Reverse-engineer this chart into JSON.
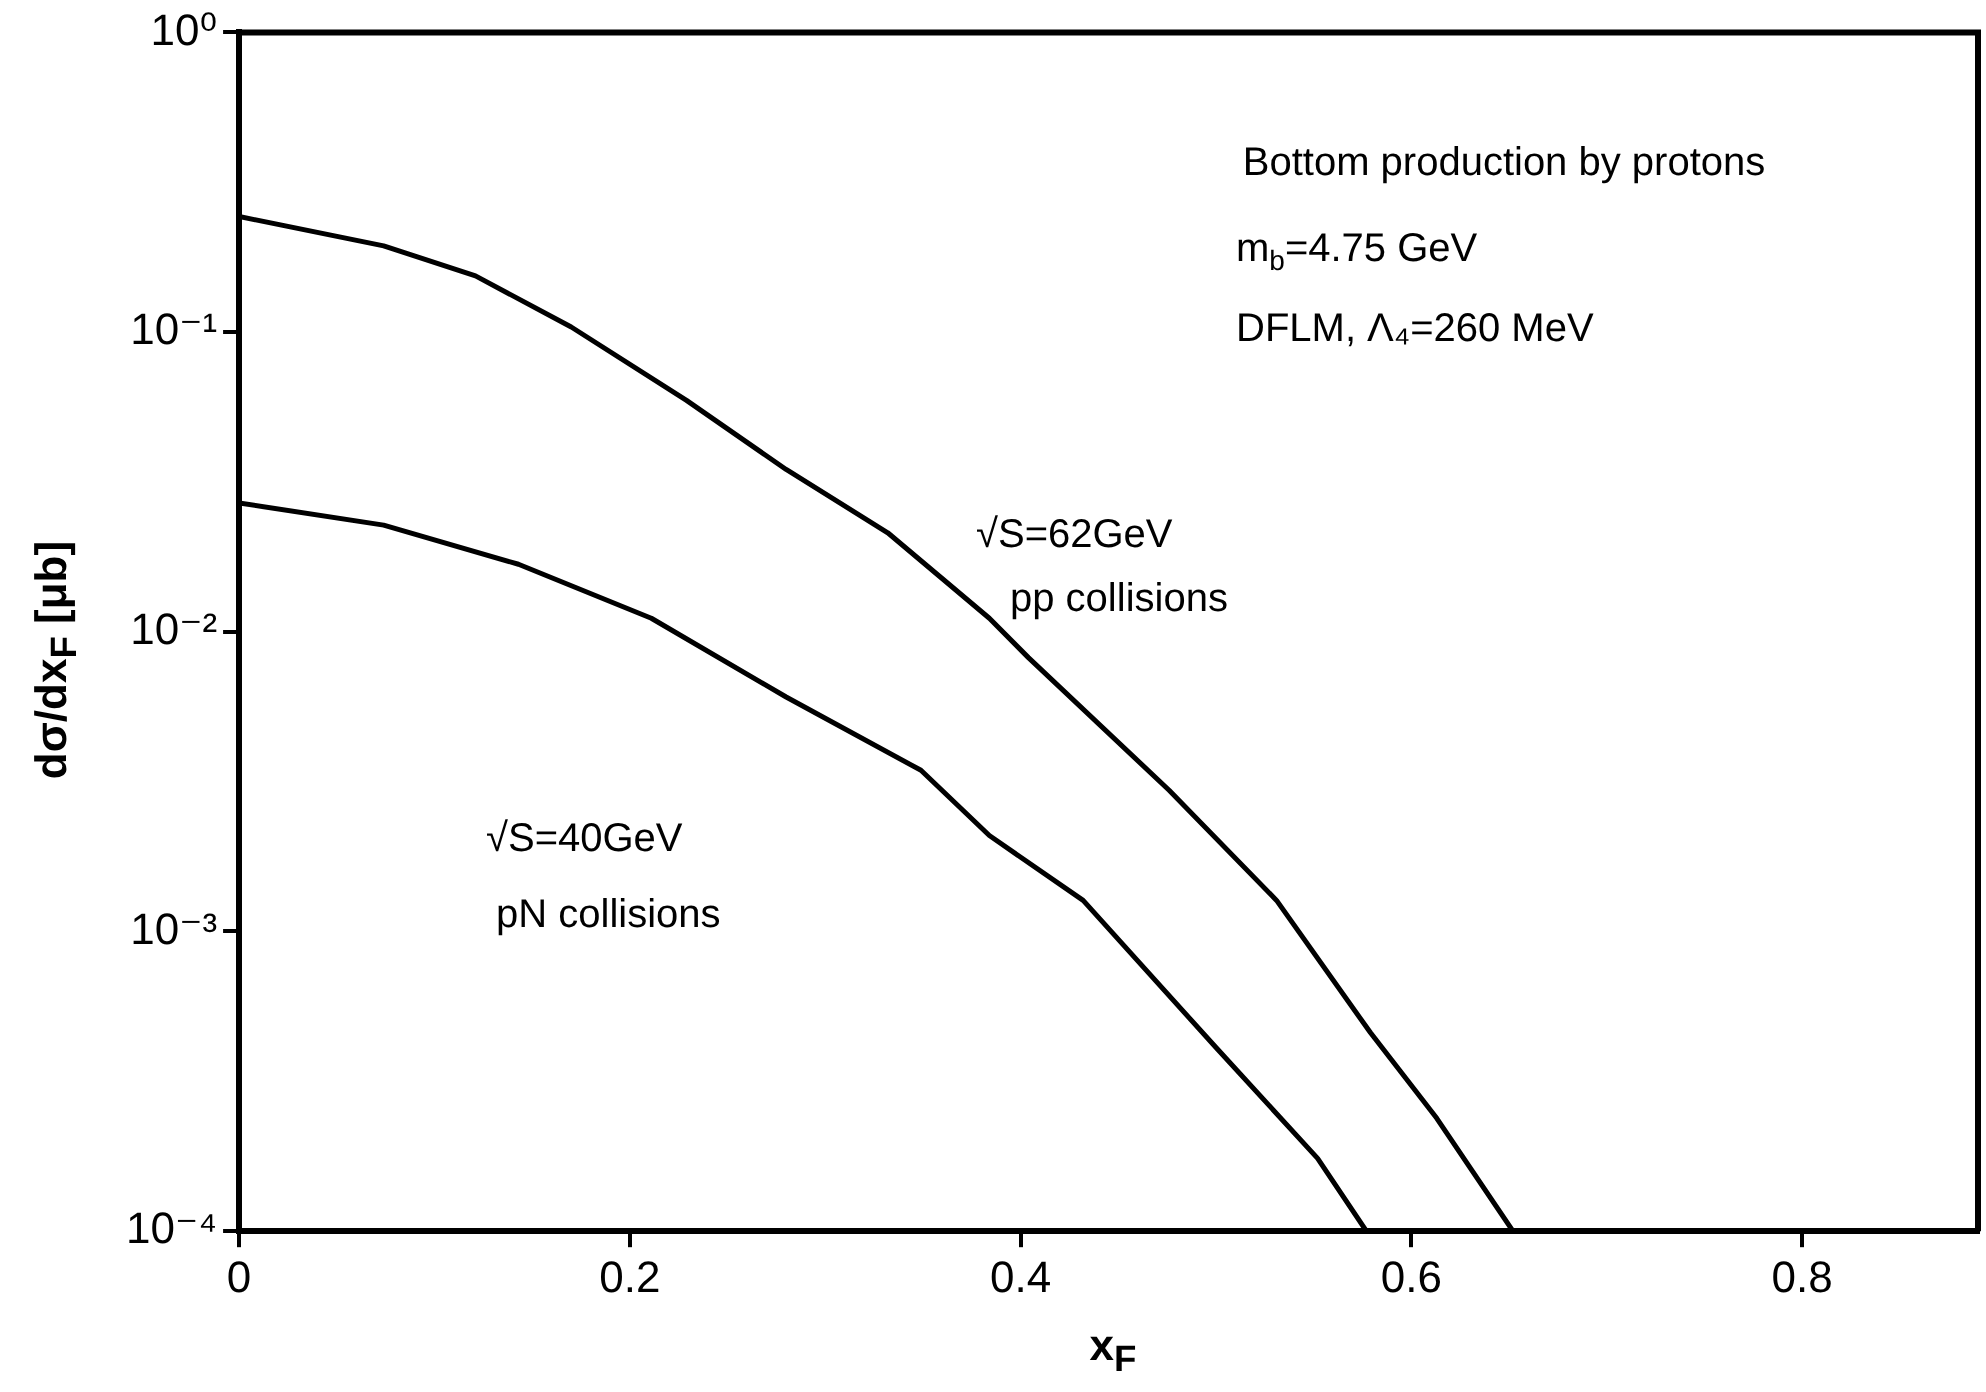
{
  "chart_data": {
    "type": "line",
    "xlabel": "x$_{F}$",
    "ylabel": "dσ/dx$_{F}$ [μb]",
    "log": "y",
    "grid": false,
    "legend": false,
    "marker": "none",
    "line_style": "solid",
    "xlim": [
      0,
      0.89
    ],
    "xticks": [
      0,
      0.2,
      0.4,
      0.6,
      0.8
    ],
    "ylim": [
      0.0001,
      1
    ],
    "yticks": [
      {
        "value": 1,
        "label": "10⁰"
      },
      {
        "value": 0.1,
        "label": "10⁻¹"
      },
      {
        "value": 0.01,
        "label": "10⁻²"
      },
      {
        "value": 0.001,
        "label": "10⁻³"
      },
      {
        "value": 0.0001,
        "label": "10⁻⁴"
      }
    ],
    "series": [
      {
        "color": "#000000",
        "x": [
          0,
          0.074,
          0.121,
          0.17,
          0.229,
          0.28,
          0.332,
          0.384,
          0.404,
          0.476,
          0.531,
          0.579,
          0.613,
          0.652
        ],
        "values": [
          0.243,
          0.194,
          0.154,
          0.104,
          0.0592,
          0.0348,
          0.0214,
          0.0111,
          0.0082,
          0.00296,
          0.00127,
          0.00046,
          0.000238,
          0.0001
        ]
      },
      {
        "color": "#000000",
        "x": [
          0,
          0.074,
          0.143,
          0.211,
          0.28,
          0.349,
          0.384,
          0.432,
          0.5,
          0.552,
          0.577
        ],
        "values": [
          0.0269,
          0.0227,
          0.0168,
          0.0111,
          0.00606,
          0.00345,
          0.00209,
          0.00127,
          0.00041,
          0.000175,
          0.0001
        ]
      }
    ],
    "annotations": [
      "Bottom production by protons",
      "m$_{b}$=4.75 GeV",
      "DFLM, Λ₄=260 MeV",
      "√S=62GeV",
      "pp collisions",
      "√S=40GeV",
      "pN collisions"
    ]
  }
}
